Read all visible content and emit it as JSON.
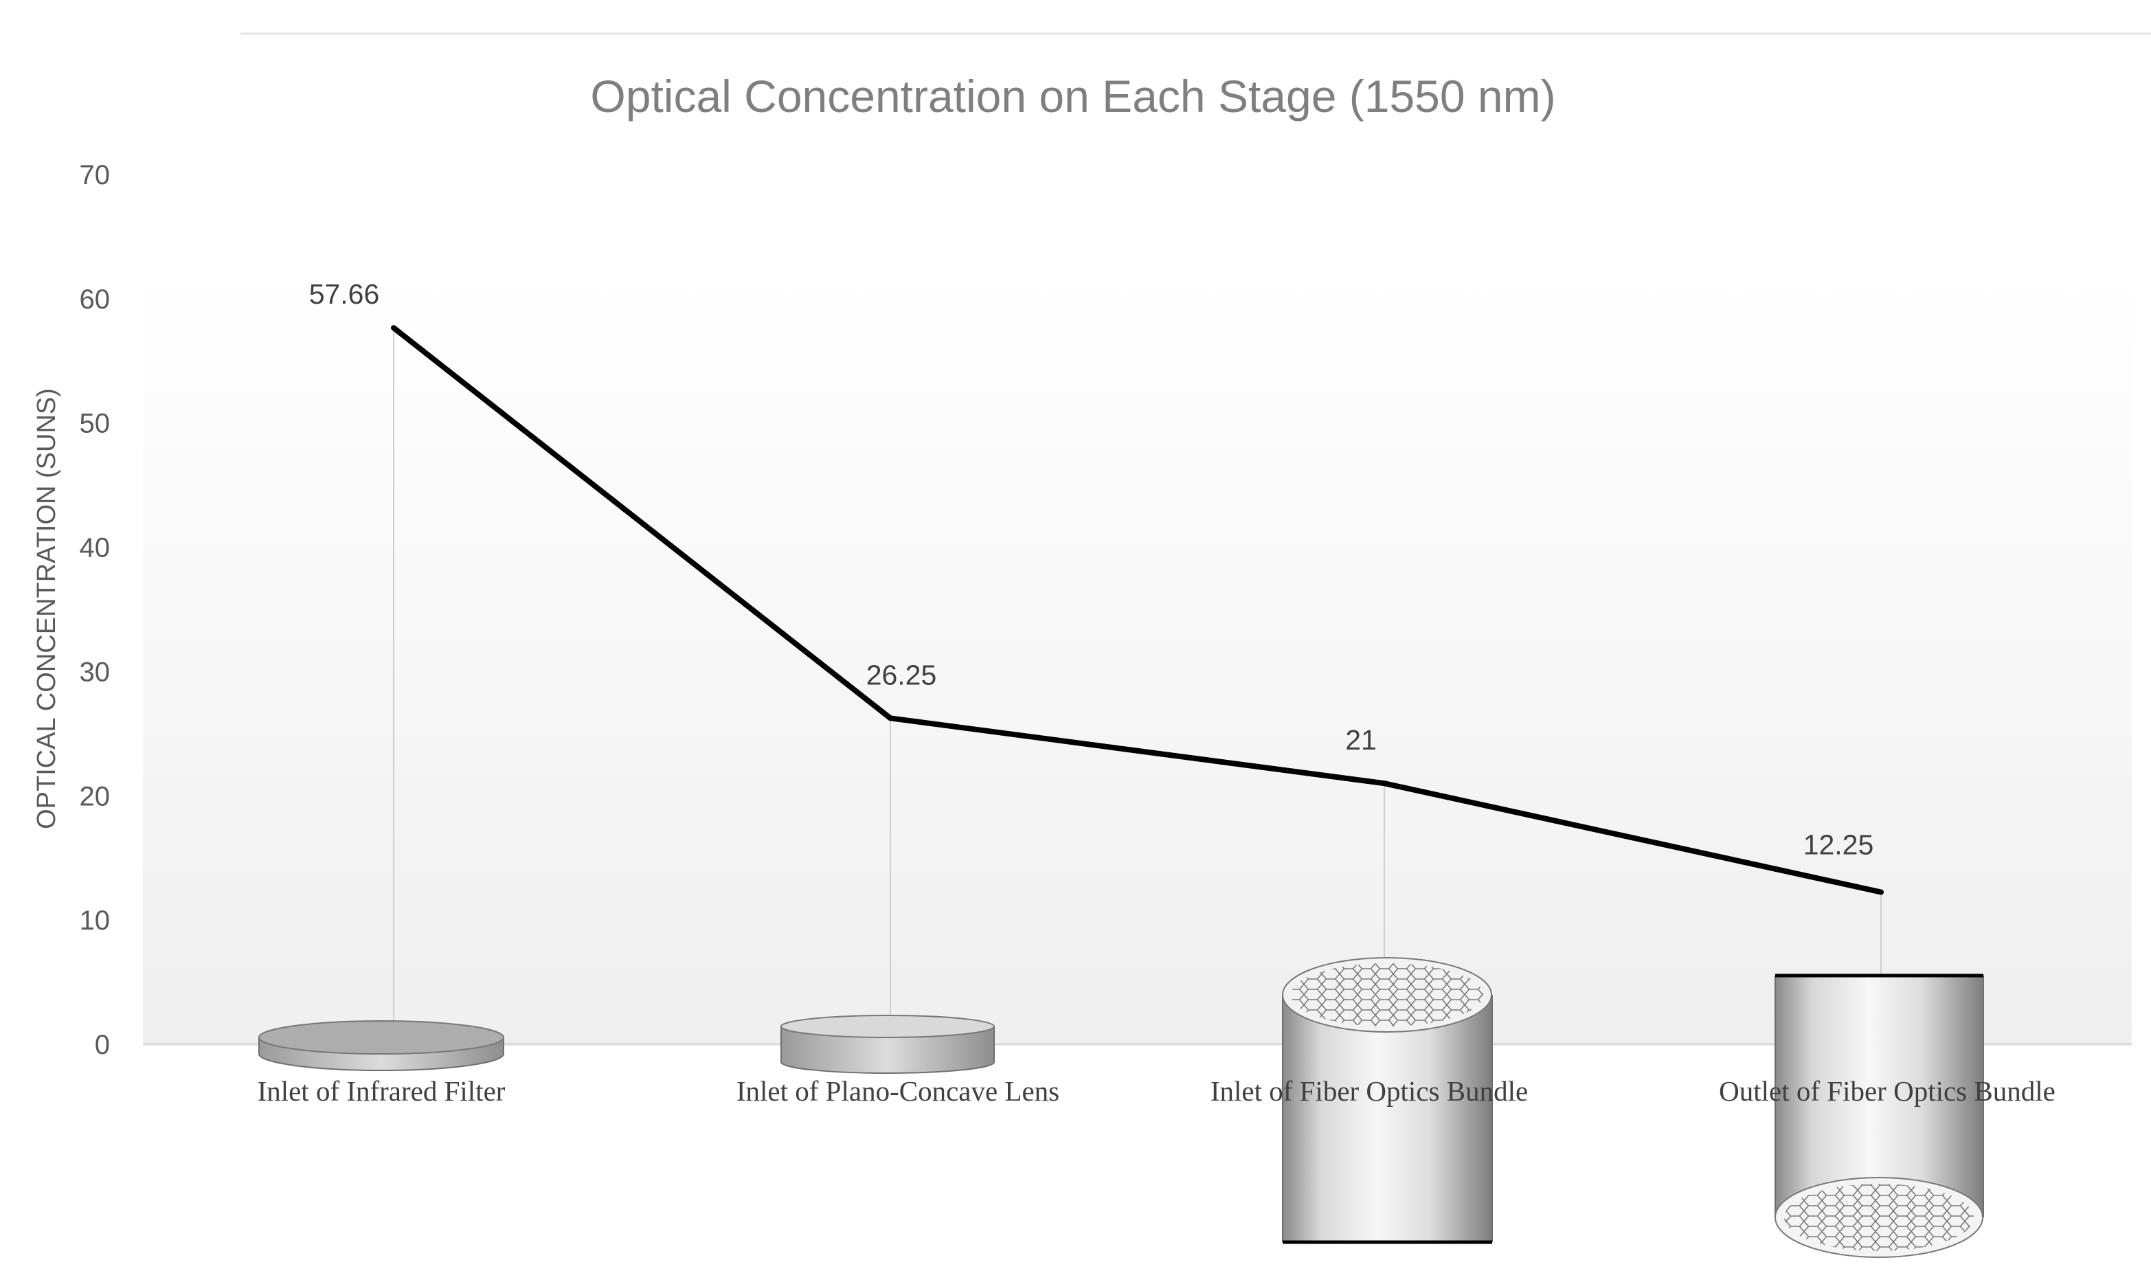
{
  "chart_data": {
    "type": "line",
    "title": "Optical Concentration on Each Stage (1550 nm)",
    "ylabel": "OPTICAL CONCENTRATION (SUNS)",
    "xlabel": "",
    "categories": [
      "Inlet of Infrared Filter",
      "Inlet of Plano-Concave Lens",
      "Inlet of Fiber Optics Bundle",
      "Outlet of Fiber Optics Bundle"
    ],
    "series": [
      {
        "values": [
          57.66,
          26.25,
          21,
          12.25
        ],
        "color": "#000000"
      }
    ],
    "data_labels": [
      "57.66",
      "26.25",
      "21",
      "12.25"
    ],
    "ylim": [
      0,
      70
    ],
    "yticks": [
      0,
      10,
      20,
      30,
      40,
      50,
      60,
      70
    ],
    "drop_lines": true,
    "grid": false,
    "legend": "none",
    "illustrations": [
      "infrared-filter-disc",
      "plano-concave-lens",
      "fiber-bundle-inlet",
      "fiber-bundle-outlet"
    ]
  }
}
